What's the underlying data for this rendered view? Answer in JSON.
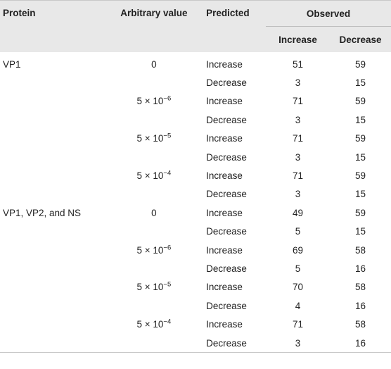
{
  "headers": {
    "protein": "Protein",
    "arbitrary": "Arbitrary value",
    "predicted": "Predicted",
    "observed": "Observed",
    "increase": "Increase",
    "decrease": "Decrease"
  },
  "rows": [
    {
      "protein": "VP1",
      "arb_base": "0",
      "arb_exp": "",
      "predicted": "Increase",
      "inc": "51",
      "dec": "59"
    },
    {
      "protein": "",
      "arb_base": "",
      "arb_exp": "",
      "predicted": "Decrease",
      "inc": "3",
      "dec": "15"
    },
    {
      "protein": "",
      "arb_base": "5 × 10",
      "arb_exp": "−6",
      "predicted": "Increase",
      "inc": "71",
      "dec": "59"
    },
    {
      "protein": "",
      "arb_base": "",
      "arb_exp": "",
      "predicted": "Decrease",
      "inc": "3",
      "dec": "15"
    },
    {
      "protein": "",
      "arb_base": "5 × 10",
      "arb_exp": "−5",
      "predicted": "Increase",
      "inc": "71",
      "dec": "59"
    },
    {
      "protein": "",
      "arb_base": "",
      "arb_exp": "",
      "predicted": "Decrease",
      "inc": "3",
      "dec": "15"
    },
    {
      "protein": "",
      "arb_base": "5 × 10",
      "arb_exp": "−4",
      "predicted": "Increase",
      "inc": "71",
      "dec": "59"
    },
    {
      "protein": "",
      "arb_base": "",
      "arb_exp": "",
      "predicted": "Decrease",
      "inc": "3",
      "dec": "15"
    },
    {
      "protein": "VP1, VP2, and NS",
      "arb_base": "0",
      "arb_exp": "",
      "predicted": "Increase",
      "inc": "49",
      "dec": "59"
    },
    {
      "protein": "",
      "arb_base": "",
      "arb_exp": "",
      "predicted": "Decrease",
      "inc": "5",
      "dec": "15"
    },
    {
      "protein": "",
      "arb_base": "5 × 10",
      "arb_exp": "−6",
      "predicted": "Increase",
      "inc": "69",
      "dec": "58"
    },
    {
      "protein": "",
      "arb_base": "",
      "arb_exp": "",
      "predicted": "Decrease",
      "inc": "5",
      "dec": "16"
    },
    {
      "protein": "",
      "arb_base": "5 × 10",
      "arb_exp": "−5",
      "predicted": "Increase",
      "inc": "70",
      "dec": "58"
    },
    {
      "protein": "",
      "arb_base": "",
      "arb_exp": "",
      "predicted": "Decrease",
      "inc": "4",
      "dec": "16"
    },
    {
      "protein": "",
      "arb_base": "5 × 10",
      "arb_exp": "−4",
      "predicted": "Increase",
      "inc": "71",
      "dec": "58"
    },
    {
      "protein": "",
      "arb_base": "",
      "arb_exp": "",
      "predicted": "Decrease",
      "inc": "3",
      "dec": "16"
    }
  ]
}
